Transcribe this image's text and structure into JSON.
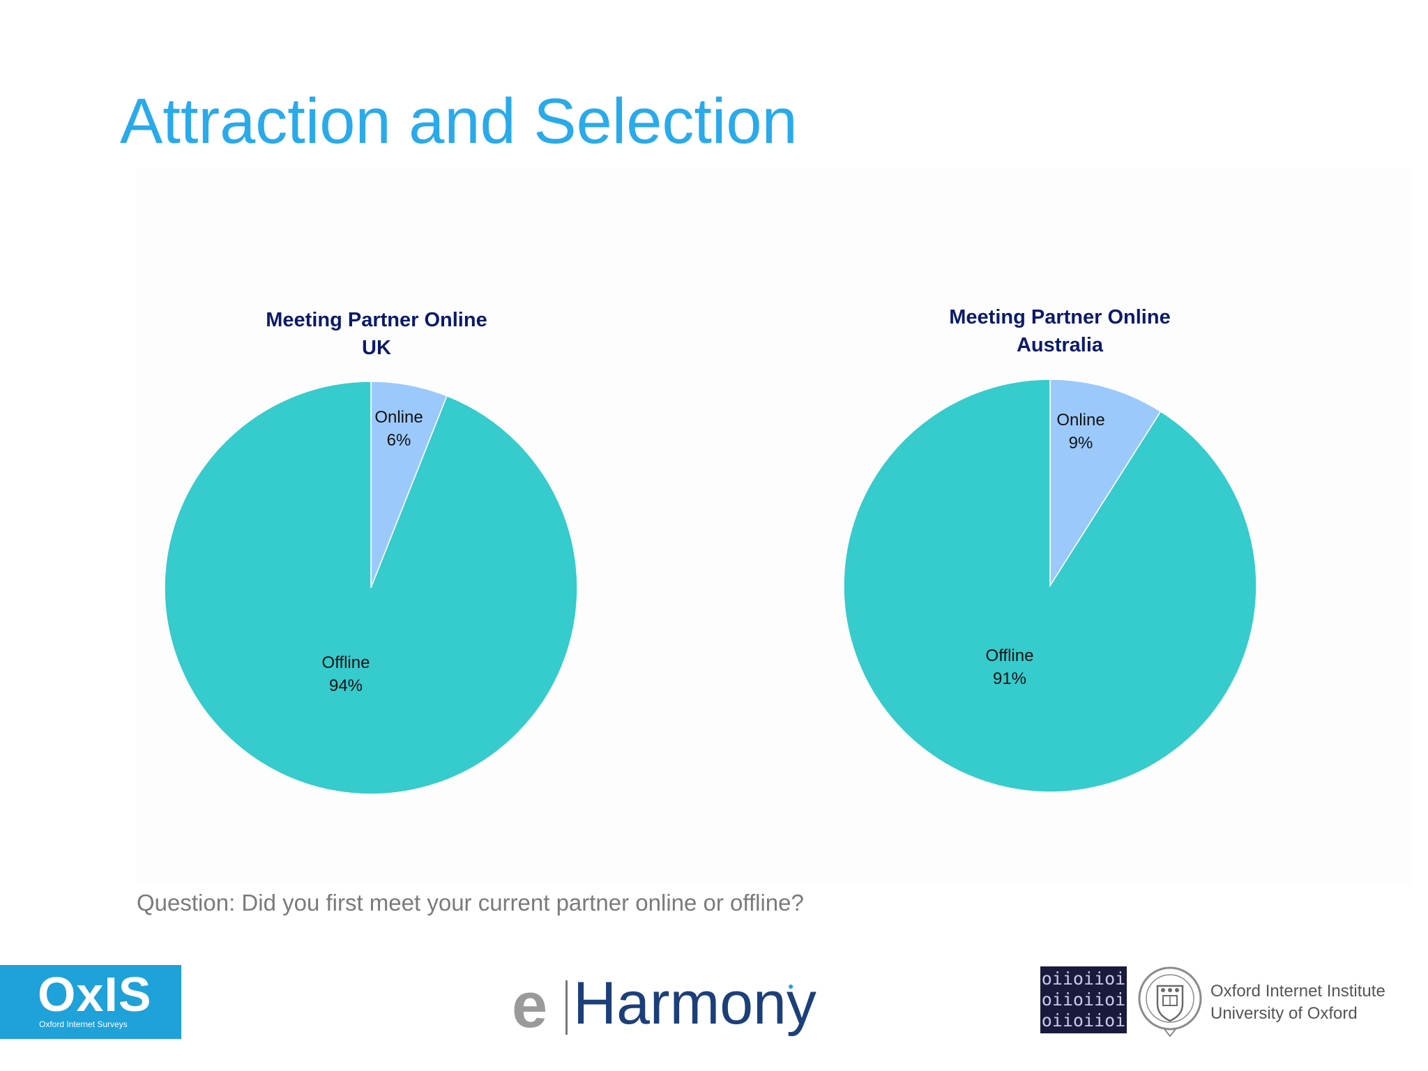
{
  "title": "Attraction and Selection",
  "question": "Question: Did you first meet your current partner online or offline?",
  "colors": {
    "title": "#29aaea",
    "online": "#9cc9fb",
    "offline": "#36cbcd",
    "chart_title": "#0a1a6b"
  },
  "chart_data": [
    {
      "type": "pie",
      "title_lines": [
        "Meeting Partner Online",
        "UK"
      ],
      "slices": [
        {
          "label": "Online",
          "value": 6,
          "value_label": "6%"
        },
        {
          "label": "Offline",
          "value": 94,
          "value_label": "94%"
        }
      ],
      "start_angle": "12 o'clock",
      "direction": "clockwise"
    },
    {
      "type": "pie",
      "title_lines": [
        "Meeting Partner Online",
        "Australia"
      ],
      "slices": [
        {
          "label": "Online",
          "value": 9,
          "value_label": "9%"
        },
        {
          "label": "Offline",
          "value": 91,
          "value_label": "91%"
        }
      ],
      "start_angle": "12 o'clock",
      "direction": "clockwise"
    }
  ],
  "logos": {
    "oxis": {
      "main": "OxIS",
      "sub": "Oxford Internet Surveys"
    },
    "eharmony": {
      "prefix": "e",
      "name": "Harmony"
    },
    "oii": {
      "binary": [
        "oiioiioi",
        "oiioiioi",
        "oiioiioi"
      ],
      "line1": "Oxford Internet Institute",
      "line2": "University of Oxford"
    }
  }
}
